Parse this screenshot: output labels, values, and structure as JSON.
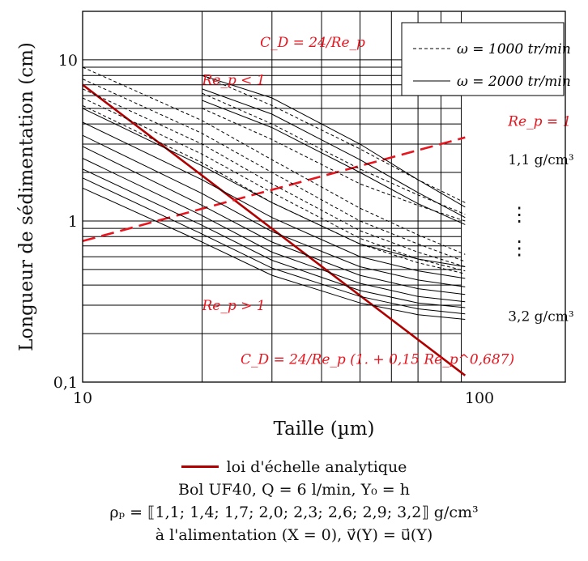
{
  "chart_data": {
    "type": "line",
    "x_scale": "log",
    "y_scale": "log",
    "xlim": [
      10,
      150
    ],
    "ylim": [
      0.1,
      20
    ],
    "grid": true,
    "xlabel": "Taille (µm)",
    "ylabel": "Longueur de sédimentation (cm)",
    "x_ticks": [
      {
        "value": 10,
        "label": "10"
      },
      {
        "value": 100,
        "label": "100"
      }
    ],
    "y_ticks": [
      {
        "value": 0.1,
        "label": "0,1"
      },
      {
        "value": 1,
        "label": "1"
      },
      {
        "value": 10,
        "label": "10"
      }
    ],
    "legend": {
      "placement": "top-right",
      "entries": [
        {
          "label": "ω = 1000 tr/min",
          "style": "dashed"
        },
        {
          "label": "ω = 2000 tr/min",
          "style": "solid"
        }
      ]
    },
    "annotations": [
      {
        "text": "C_D = 24/Re_p",
        "x": 28,
        "y": 12.0
      },
      {
        "text": "Re_p < 1",
        "x": 20,
        "y": 7.0
      },
      {
        "text": "Re_p = 1",
        "x": 118,
        "y": 3.9
      },
      {
        "text": "1,1 g/cm³",
        "x": 118,
        "y": 2.25
      },
      {
        "text": "⋮",
        "x": 126,
        "y": 1.0
      },
      {
        "text": "⋮",
        "x": 126,
        "y": 0.62
      },
      {
        "text": "3,2 g/cm³",
        "x": 118,
        "y": 0.24
      },
      {
        "text": "Re_p > 1",
        "x": 20,
        "y": 0.28
      },
      {
        "text": "C_D = 24/Re_p (1. + 0,15 Re_p^0,687)",
        "x": 25,
        "y": 0.13
      }
    ],
    "colors": {
      "grid": "#000000",
      "curves": "#000000",
      "analytic": "#b00000",
      "transition": "#e8141e",
      "annotation": "#e8141e"
    },
    "series": [
      {
        "name": "loi d'échelle analytique",
        "style": "solid-thick-red",
        "x": [
          10,
          92
        ],
        "y": [
          7.0,
          0.11
        ]
      },
      {
        "name": "Re_p = 1",
        "style": "dashed-thick-red",
        "x": [
          10,
          92
        ],
        "y": [
          0.75,
          3.3
        ]
      },
      {
        "style": "dashed",
        "x": [
          10,
          20,
          30,
          50,
          70,
          92
        ],
        "y": [
          9.0,
          4.2,
          2.4,
          1.2,
          0.82,
          0.62
        ]
      },
      {
        "style": "dashed",
        "x": [
          10,
          20,
          30,
          50,
          70,
          92
        ],
        "y": [
          7.6,
          3.5,
          2.0,
          1.0,
          0.72,
          0.56
        ]
      },
      {
        "style": "dashed",
        "x": [
          10,
          20,
          30,
          50,
          70,
          92
        ],
        "y": [
          6.6,
          3.0,
          1.7,
          0.87,
          0.64,
          0.52
        ]
      },
      {
        "style": "dashed",
        "x": [
          10,
          20,
          30,
          50,
          70,
          92
        ],
        "y": [
          5.8,
          2.6,
          1.5,
          0.78,
          0.58,
          0.49
        ]
      },
      {
        "style": "dashed",
        "x": [
          10,
          20,
          30,
          50,
          70,
          92
        ],
        "y": [
          5.2,
          2.3,
          1.3,
          0.72,
          0.55,
          0.47
        ]
      },
      {
        "style": "dashed",
        "x": [
          20,
          30,
          50,
          70,
          92
        ],
        "y": [
          8.0,
          5.2,
          2.8,
          1.8,
          1.3
        ]
      },
      {
        "style": "dashed",
        "x": [
          20,
          30,
          50,
          70,
          92
        ],
        "y": [
          6.2,
          4.0,
          2.1,
          1.45,
          1.1
        ]
      },
      {
        "style": "dashed",
        "x": [
          20,
          30,
          50,
          70,
          92
        ],
        "y": [
          5.0,
          3.2,
          1.7,
          1.25,
          1.0
        ]
      },
      {
        "style": "solid",
        "x": [
          20,
          30,
          50,
          70,
          92
        ],
        "y": [
          8.0,
          5.8,
          3.0,
          1.8,
          1.22
        ]
      },
      {
        "style": "solid",
        "x": [
          20,
          30,
          50,
          70,
          92
        ],
        "y": [
          6.6,
          4.6,
          2.4,
          1.5,
          1.05
        ]
      },
      {
        "style": "solid",
        "x": [
          20,
          30,
          50,
          70,
          92
        ],
        "y": [
          5.6,
          3.8,
          2.0,
          1.28,
          0.95
        ]
      },
      {
        "style": "solid",
        "x": [
          10,
          20,
          30,
          50,
          70,
          92
        ],
        "y": [
          5.0,
          2.2,
          1.3,
          0.72,
          0.58,
          0.52
        ]
      },
      {
        "style": "solid",
        "x": [
          10,
          20,
          30,
          50,
          70,
          92
        ],
        "y": [
          4.1,
          1.8,
          1.05,
          0.6,
          0.49,
          0.44
        ]
      },
      {
        "style": "solid",
        "x": [
          10,
          20,
          30,
          50,
          70,
          92
        ],
        "y": [
          3.4,
          1.48,
          0.86,
          0.52,
          0.43,
          0.39
        ]
      },
      {
        "style": "solid",
        "x": [
          10,
          20,
          30,
          50,
          70,
          92
        ],
        "y": [
          2.9,
          1.25,
          0.74,
          0.46,
          0.38,
          0.35
        ]
      },
      {
        "style": "solid",
        "x": [
          10,
          20,
          30,
          50,
          70,
          92
        ],
        "y": [
          2.45,
          1.08,
          0.64,
          0.41,
          0.34,
          0.315
        ]
      },
      {
        "style": "solid",
        "x": [
          10,
          20,
          30,
          50,
          70,
          92
        ],
        "y": [
          2.1,
          0.94,
          0.57,
          0.37,
          0.31,
          0.29
        ]
      },
      {
        "style": "solid",
        "x": [
          10,
          20,
          30,
          50,
          70,
          92
        ],
        "y": [
          1.85,
          0.83,
          0.51,
          0.34,
          0.285,
          0.265
        ]
      },
      {
        "style": "solid",
        "x": [
          10,
          20,
          30,
          50,
          70,
          92
        ],
        "y": [
          1.6,
          0.74,
          0.46,
          0.31,
          0.262,
          0.245
        ]
      }
    ]
  },
  "caption": {
    "legend_label": "loi d'échelle analytique",
    "line1": "Bol UF40, Q = 6 l/min, Y₀ = h",
    "line2": "ρₚ = ⟦1,1; 1,4; 1,7; 2,0; 2,3; 2,6; 2,9; 3,2⟧ g/cm³",
    "line3": "à l'alimentation (X = 0), v⃗(Y) = u⃗(Y)"
  }
}
